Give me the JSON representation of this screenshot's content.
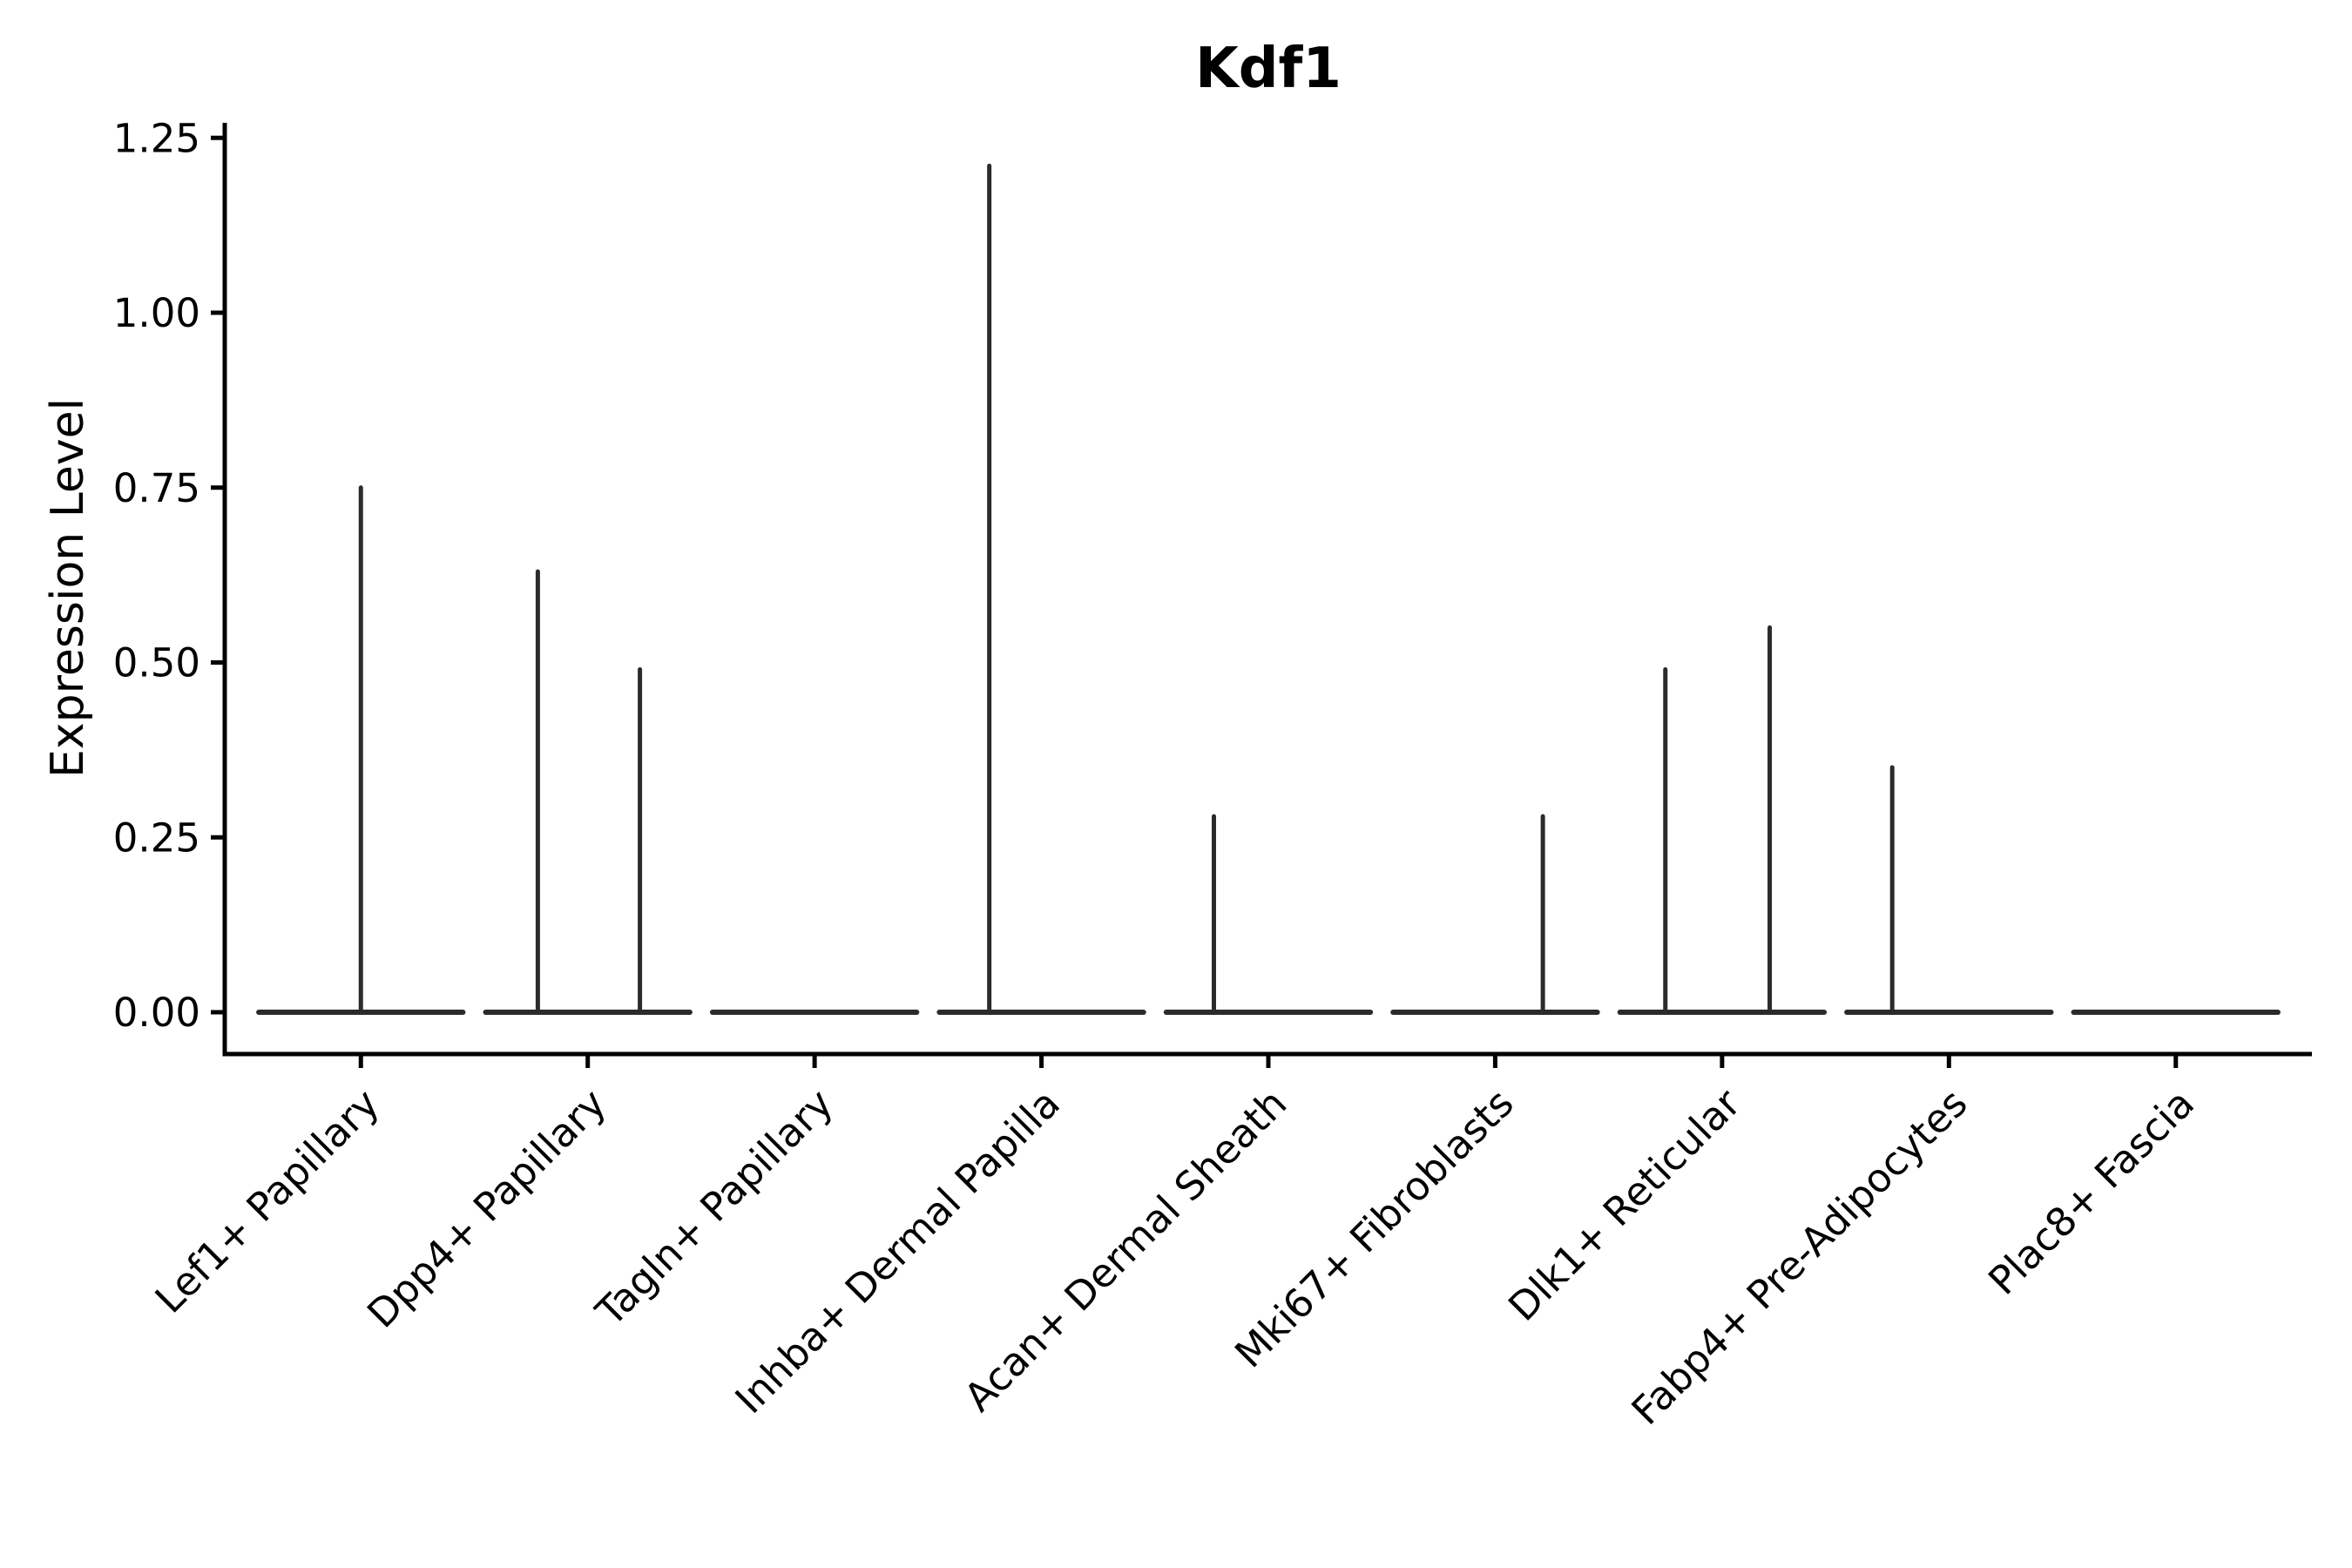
{
  "figure": {
    "background": "#ffffff",
    "axis_color": "#000000",
    "violin_color": "#2b2b2b"
  },
  "chart_data": {
    "type": "violin",
    "title": "Kdf1",
    "xlabel": "",
    "ylabel": "Expression Level",
    "ylim": [
      0,
      1.25
    ],
    "yticks": [
      0.0,
      0.25,
      0.5,
      0.75,
      1.0,
      1.25
    ],
    "ytick_labels": [
      "0.00",
      "0.25",
      "0.50",
      "0.75",
      "1.00",
      "1.25"
    ],
    "grid": false,
    "legend_position": "none",
    "categories": [
      "Lef1+ Papillary",
      "Dpp4+ Papillary",
      "Tagln+ Papillary",
      "Inhba+ Dermal Papilla",
      "Acan+ Dermal Sheath",
      "Mki67+ Fibroblasts",
      "Dlk1+ Reticular",
      "Fabp4+ Pre-Adipocytes",
      "Plac8+ Fascia"
    ],
    "violins": [
      {
        "category": "Lef1+ Papillary",
        "baseline_value": 0,
        "spikes": [
          {
            "x_offset": 0.0,
            "value": 0.75
          }
        ]
      },
      {
        "category": "Dpp4+ Papillary",
        "baseline_value": 0,
        "spikes": [
          {
            "x_offset": -0.22,
            "value": 0.63
          },
          {
            "x_offset": 0.23,
            "value": 0.49
          }
        ]
      },
      {
        "category": "Tagln+ Papillary",
        "baseline_value": 0,
        "spikes": []
      },
      {
        "category": "Inhba+ Dermal Papilla",
        "baseline_value": 0,
        "spikes": [
          {
            "x_offset": -0.23,
            "value": 1.21
          }
        ]
      },
      {
        "category": "Acan+ Dermal Sheath",
        "baseline_value": 0,
        "spikes": [
          {
            "x_offset": -0.24,
            "value": 0.28
          }
        ]
      },
      {
        "category": "Mki67+ Fibroblasts",
        "baseline_value": 0,
        "spikes": [
          {
            "x_offset": 0.21,
            "value": 0.28
          }
        ]
      },
      {
        "category": "Dlk1+ Reticular",
        "baseline_value": 0,
        "spikes": [
          {
            "x_offset": -0.25,
            "value": 0.49
          },
          {
            "x_offset": 0.21,
            "value": 0.55
          }
        ]
      },
      {
        "category": "Fabp4+ Pre-Adipocytes",
        "baseline_value": 0,
        "spikes": [
          {
            "x_offset": -0.25,
            "value": 0.35
          }
        ]
      },
      {
        "category": "Plac8+ Fascia",
        "baseline_value": 0,
        "spikes": []
      }
    ]
  }
}
